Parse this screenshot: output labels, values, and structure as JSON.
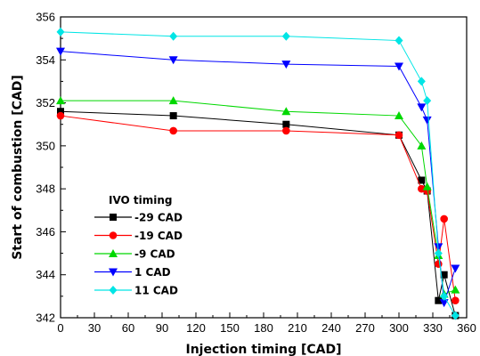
{
  "chart_data": {
    "type": "line",
    "xlabel": "Injection timing  [CAD]",
    "ylabel": "Start of combustion  [CAD]",
    "xlim": [
      0,
      360
    ],
    "ylim": [
      342,
      356
    ],
    "xticks": [
      0,
      30,
      60,
      90,
      120,
      150,
      180,
      210,
      240,
      270,
      300,
      330,
      360
    ],
    "yticks": [
      342,
      344,
      346,
      348,
      350,
      352,
      354,
      356
    ],
    "grid": false,
    "legend": {
      "title": "IVO timing",
      "position": "bottom-left"
    },
    "series": [
      {
        "name": "-29 CAD",
        "color": "#000000",
        "marker": "square",
        "points": [
          [
            0,
            351.6
          ],
          [
            100,
            351.4
          ],
          [
            200,
            351.0
          ],
          [
            300,
            350.5
          ],
          [
            320,
            348.4
          ],
          [
            325,
            347.9
          ],
          [
            335,
            342.8
          ],
          [
            340,
            344.0
          ],
          [
            350,
            342.1
          ]
        ]
      },
      {
        "name": "-19 CAD",
        "color": "#ff0000",
        "marker": "circle",
        "points": [
          [
            0,
            351.4
          ],
          [
            100,
            350.7
          ],
          [
            200,
            350.7
          ],
          [
            300,
            350.5
          ],
          [
            320,
            348.0
          ],
          [
            325,
            347.9
          ],
          [
            335,
            344.5
          ],
          [
            340,
            346.6
          ],
          [
            350,
            342.8
          ]
        ]
      },
      {
        "name": "-9 CAD",
        "color": "#00d800",
        "marker": "triangle-up",
        "points": [
          [
            0,
            352.1
          ],
          [
            100,
            352.1
          ],
          [
            200,
            351.6
          ],
          [
            300,
            351.4
          ],
          [
            320,
            350.0
          ],
          [
            325,
            348.1
          ],
          [
            335,
            344.9
          ],
          [
            340,
            343.1
          ],
          [
            350,
            343.3
          ]
        ]
      },
      {
        "name": "1 CAD",
        "color": "#0000ff",
        "marker": "triangle-down",
        "points": [
          [
            0,
            354.4
          ],
          [
            100,
            354.0
          ],
          [
            200,
            353.8
          ],
          [
            300,
            353.7
          ],
          [
            320,
            351.8
          ],
          [
            325,
            351.2
          ],
          [
            335,
            345.3
          ],
          [
            340,
            342.7
          ],
          [
            350,
            344.3
          ]
        ]
      },
      {
        "name": "11 CAD",
        "color": "#00e5e5",
        "marker": "diamond",
        "points": [
          [
            0,
            355.3
          ],
          [
            100,
            355.1
          ],
          [
            200,
            355.1
          ],
          [
            300,
            354.9
          ],
          [
            320,
            353.0
          ],
          [
            325,
            352.1
          ],
          [
            335,
            345.0
          ],
          [
            340,
            343.0
          ],
          [
            350,
            342.1
          ]
        ]
      }
    ]
  }
}
